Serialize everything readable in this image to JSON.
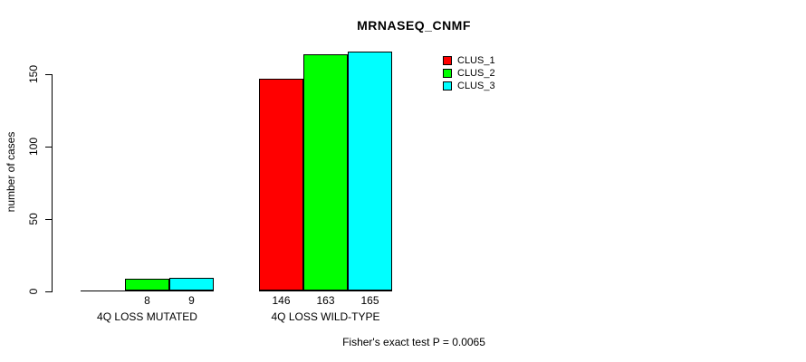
{
  "chart_data": {
    "type": "bar",
    "title": "MRNASEQ_CNMF",
    "xlabel": "",
    "ylabel": "number of cases",
    "categories": [
      "4Q LOSS MUTATED",
      "4Q LOSS WILD-TYPE"
    ],
    "series": [
      {
        "name": "CLUS_1",
        "color": "#FF0000",
        "values": [
          0,
          146
        ]
      },
      {
        "name": "CLUS_2",
        "color": "#00FF00",
        "values": [
          8,
          163
        ]
      },
      {
        "name": "CLUS_3",
        "color": "#00FFFF",
        "values": [
          9,
          165
        ]
      }
    ],
    "value_labels": [
      [
        "",
        "8",
        "9"
      ],
      [
        "146",
        "163",
        "165"
      ]
    ],
    "y_ticks": [
      0,
      50,
      100,
      150
    ],
    "y_tick_labels": [
      "0",
      "50",
      "100",
      "150"
    ],
    "ylim": [
      0,
      165
    ],
    "grid": false,
    "legend_position": "top-right-inside",
    "annotation": "Fisher's exact test P = 0.0065",
    "axis_color": "#000000",
    "background_color": "#FFFFFF"
  }
}
